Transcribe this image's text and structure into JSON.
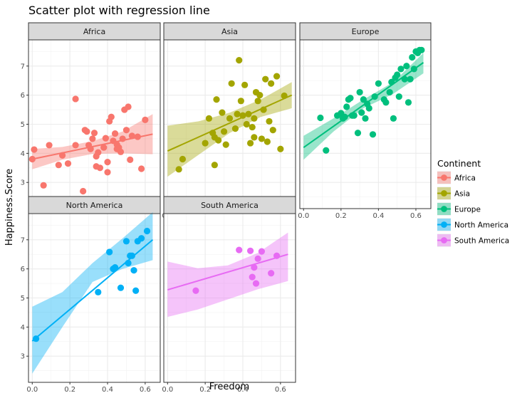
{
  "chart_data": {
    "type": "scatter",
    "title": "Scatter plot with regression line",
    "xlabel": "Freedom",
    "ylabel": "Happiness.Score",
    "xlim": [
      -0.02,
      0.68
    ],
    "ylim": [
      2.1,
      7.9
    ],
    "xticks": [
      0.0,
      0.2,
      0.4,
      0.6
    ],
    "xtick_labels": [
      "0.0",
      "0.2",
      "0.4",
      "0.6"
    ],
    "yticks": [
      3,
      4,
      5,
      6,
      7
    ],
    "ytick_labels": [
      "3",
      "4",
      "5",
      "6",
      "7"
    ],
    "grid": true,
    "legend": {
      "title": "Continent",
      "position": "right",
      "entries": [
        "Africa",
        "Asia",
        "Europe",
        "North America",
        "South America"
      ]
    },
    "panels": [
      {
        "name": "Africa",
        "color": "#F8766D",
        "fit": {
          "x0": 0.0,
          "y0": 3.8,
          "x1": 0.64,
          "y1": 4.66
        },
        "band": {
          "lower": [
            3.45,
            3.78,
            3.98,
            4.0,
            3.97
          ],
          "upper": [
            4.15,
            4.22,
            4.42,
            4.75,
            5.35
          ]
        },
        "points": [
          [
            0.0,
            3.8
          ],
          [
            0.01,
            4.13
          ],
          [
            0.06,
            2.9
          ],
          [
            0.09,
            4.28
          ],
          [
            0.14,
            3.6
          ],
          [
            0.16,
            3.93
          ],
          [
            0.19,
            3.65
          ],
          [
            0.23,
            5.87
          ],
          [
            0.23,
            4.28
          ],
          [
            0.27,
            2.7
          ],
          [
            0.28,
            4.8
          ],
          [
            0.29,
            4.75
          ],
          [
            0.3,
            4.28
          ],
          [
            0.31,
            4.15
          ],
          [
            0.32,
            4.5
          ],
          [
            0.33,
            4.7
          ],
          [
            0.34,
            3.9
          ],
          [
            0.34,
            3.55
          ],
          [
            0.35,
            4.03
          ],
          [
            0.36,
            3.5
          ],
          [
            0.38,
            4.2
          ],
          [
            0.39,
            4.52
          ],
          [
            0.4,
            3.35
          ],
          [
            0.4,
            3.7
          ],
          [
            0.41,
            5.1
          ],
          [
            0.42,
            5.25
          ],
          [
            0.43,
            4.43
          ],
          [
            0.44,
            4.68
          ],
          [
            0.45,
            4.15
          ],
          [
            0.45,
            4.3
          ],
          [
            0.46,
            4.2
          ],
          [
            0.47,
            4.05
          ],
          [
            0.48,
            4.5
          ],
          [
            0.49,
            5.5
          ],
          [
            0.5,
            4.8
          ],
          [
            0.51,
            5.6
          ],
          [
            0.52,
            3.78
          ],
          [
            0.53,
            4.6
          ],
          [
            0.56,
            4.57
          ],
          [
            0.58,
            3.47
          ],
          [
            0.6,
            5.15
          ]
        ]
      },
      {
        "name": "Asia",
        "color": "#A3A500",
        "fit": {
          "x0": 0.0,
          "y0": 4.08,
          "x1": 0.66,
          "y1": 6.0
        },
        "band": {
          "lower": [
            3.2,
            3.95,
            4.7,
            5.25,
            5.55
          ],
          "upper": [
            4.95,
            5.1,
            5.4,
            5.85,
            6.45
          ]
        },
        "points": [
          [
            0.06,
            3.45
          ],
          [
            0.08,
            3.8
          ],
          [
            0.2,
            4.35
          ],
          [
            0.22,
            5.2
          ],
          [
            0.24,
            4.7
          ],
          [
            0.25,
            4.55
          ],
          [
            0.25,
            3.6
          ],
          [
            0.26,
            5.85
          ],
          [
            0.27,
            4.45
          ],
          [
            0.29,
            5.4
          ],
          [
            0.3,
            4.75
          ],
          [
            0.31,
            4.3
          ],
          [
            0.33,
            5.2
          ],
          [
            0.34,
            6.4
          ],
          [
            0.36,
            4.85
          ],
          [
            0.37,
            5.35
          ],
          [
            0.38,
            7.2
          ],
          [
            0.39,
            5.8
          ],
          [
            0.4,
            5.3
          ],
          [
            0.41,
            6.35
          ],
          [
            0.42,
            5.0
          ],
          [
            0.43,
            5.35
          ],
          [
            0.44,
            4.35
          ],
          [
            0.45,
            4.9
          ],
          [
            0.46,
            5.2
          ],
          [
            0.46,
            4.55
          ],
          [
            0.47,
            6.1
          ],
          [
            0.48,
            5.8
          ],
          [
            0.49,
            6.0
          ],
          [
            0.5,
            4.5
          ],
          [
            0.51,
            5.5
          ],
          [
            0.52,
            6.55
          ],
          [
            0.53,
            4.4
          ],
          [
            0.54,
            5.1
          ],
          [
            0.55,
            6.4
          ],
          [
            0.56,
            4.8
          ],
          [
            0.58,
            6.65
          ],
          [
            0.6,
            4.15
          ],
          [
            0.62,
            5.98
          ]
        ]
      },
      {
        "name": "Europe",
        "color": "#00BF7D",
        "fit": {
          "x0": 0.0,
          "y0": 4.2,
          "x1": 0.64,
          "y1": 7.12
        },
        "band": {
          "lower": [
            3.78,
            4.75,
            5.55,
            6.05,
            6.75
          ],
          "upper": [
            4.6,
            5.2,
            5.85,
            6.45,
            7.45
          ]
        },
        "points": [
          [
            0.09,
            5.22
          ],
          [
            0.12,
            4.1
          ],
          [
            0.18,
            5.3
          ],
          [
            0.2,
            5.38
          ],
          [
            0.21,
            5.2
          ],
          [
            0.22,
            5.25
          ],
          [
            0.23,
            5.6
          ],
          [
            0.24,
            5.85
          ],
          [
            0.25,
            5.9
          ],
          [
            0.26,
            5.3
          ],
          [
            0.27,
            5.3
          ],
          [
            0.29,
            4.7
          ],
          [
            0.3,
            6.1
          ],
          [
            0.31,
            5.4
          ],
          [
            0.32,
            5.85
          ],
          [
            0.33,
            5.2
          ],
          [
            0.34,
            5.7
          ],
          [
            0.35,
            5.55
          ],
          [
            0.37,
            4.65
          ],
          [
            0.38,
            5.95
          ],
          [
            0.4,
            6.4
          ],
          [
            0.43,
            5.85
          ],
          [
            0.44,
            5.75
          ],
          [
            0.46,
            6.1
          ],
          [
            0.47,
            6.45
          ],
          [
            0.48,
            5.2
          ],
          [
            0.49,
            6.6
          ],
          [
            0.5,
            6.7
          ],
          [
            0.51,
            5.95
          ],
          [
            0.52,
            6.9
          ],
          [
            0.54,
            6.55
          ],
          [
            0.55,
            7.0
          ],
          [
            0.56,
            5.75
          ],
          [
            0.57,
            6.55
          ],
          [
            0.58,
            7.3
          ],
          [
            0.59,
            6.9
          ],
          [
            0.6,
            7.5
          ],
          [
            0.61,
            7.45
          ],
          [
            0.62,
            7.55
          ],
          [
            0.63,
            7.55
          ]
        ]
      },
      {
        "name": "North America",
        "color": "#00B0F6",
        "fit": {
          "x0": 0.0,
          "y0": 3.52,
          "x1": 0.64,
          "y1": 7.0
        },
        "band": {
          "lower": [
            2.4,
            4.0,
            5.55,
            6.0,
            6.3
          ],
          "upper": [
            4.7,
            5.2,
            6.2,
            7.05,
            7.95
          ]
        },
        "points": [
          [
            0.02,
            3.6
          ],
          [
            0.35,
            5.2
          ],
          [
            0.41,
            6.58
          ],
          [
            0.43,
            6.0
          ],
          [
            0.44,
            6.05
          ],
          [
            0.47,
            5.35
          ],
          [
            0.5,
            6.95
          ],
          [
            0.51,
            6.2
          ],
          [
            0.52,
            6.45
          ],
          [
            0.53,
            6.45
          ],
          [
            0.54,
            5.95
          ],
          [
            0.55,
            5.25
          ],
          [
            0.56,
            6.95
          ],
          [
            0.58,
            7.05
          ],
          [
            0.61,
            7.3
          ]
        ]
      },
      {
        "name": "South America",
        "color": "#E76BF3",
        "fit": {
          "x0": 0.0,
          "y0": 5.28,
          "x1": 0.64,
          "y1": 6.5
        },
        "band": {
          "lower": [
            4.35,
            4.6,
            4.95,
            5.3,
            5.58
          ],
          "upper": [
            6.25,
            6.02,
            6.12,
            6.55,
            7.25
          ]
        },
        "points": [
          [
            0.15,
            5.25
          ],
          [
            0.38,
            6.65
          ],
          [
            0.44,
            6.62
          ],
          [
            0.45,
            5.72
          ],
          [
            0.46,
            6.05
          ],
          [
            0.47,
            5.5
          ],
          [
            0.48,
            6.35
          ],
          [
            0.5,
            6.6
          ],
          [
            0.55,
            5.85
          ],
          [
            0.58,
            6.45
          ]
        ]
      }
    ]
  }
}
